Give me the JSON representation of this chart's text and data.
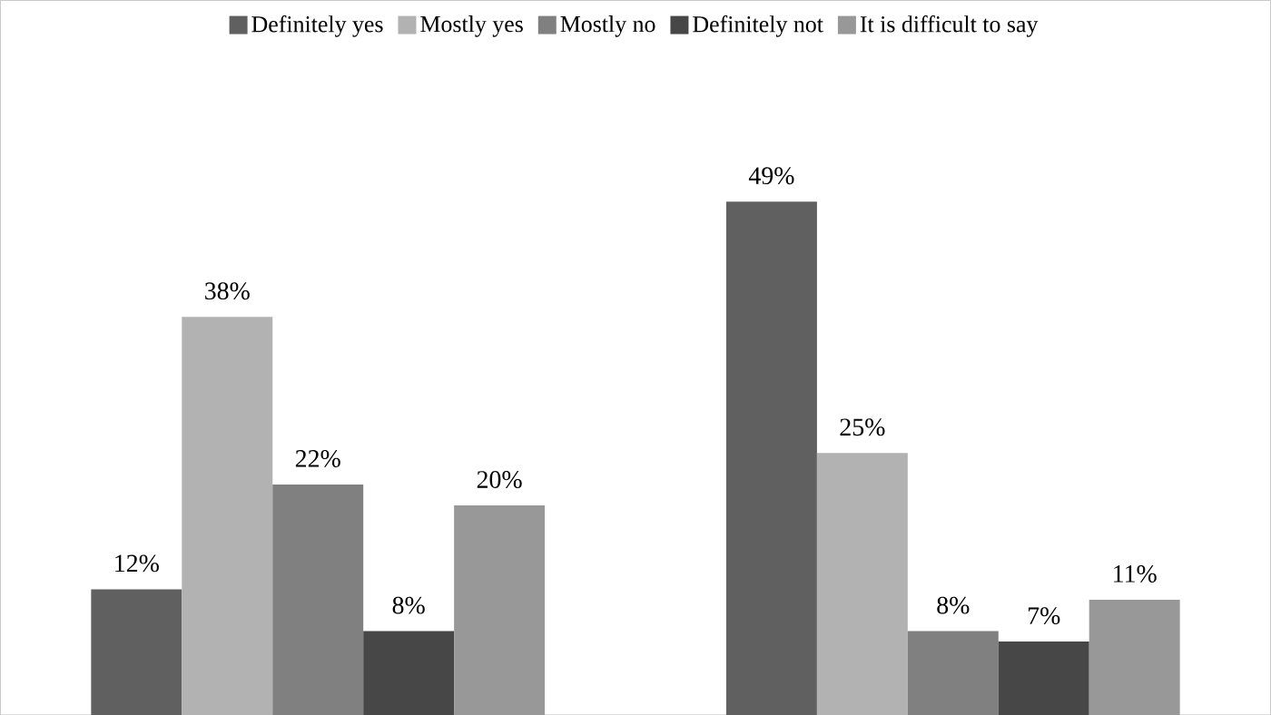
{
  "chart_data": {
    "type": "bar",
    "categories": [
      null,
      null
    ],
    "legend": "top",
    "series": [
      {
        "name": "Definitely yes",
        "color": "#606060",
        "values": [
          12,
          49
        ],
        "value_labels": [
          "12%",
          "49%"
        ]
      },
      {
        "name": "Mostly yes",
        "color": "#b2b2b2",
        "values": [
          38,
          25
        ],
        "value_labels": [
          "38%",
          "25%"
        ]
      },
      {
        "name": "Mostly no",
        "color": "#808080",
        "values": [
          22,
          8
        ],
        "value_labels": [
          "22%",
          "8%"
        ]
      },
      {
        "name": "Definitely not",
        "color": "#474747",
        "values": [
          8,
          7
        ],
        "value_labels": [
          "8%",
          "7%"
        ]
      },
      {
        "name": "It is difficult to say",
        "color": "#989898",
        "values": [
          20,
          11
        ],
        "value_labels": [
          "20%",
          "11%"
        ]
      }
    ]
  }
}
